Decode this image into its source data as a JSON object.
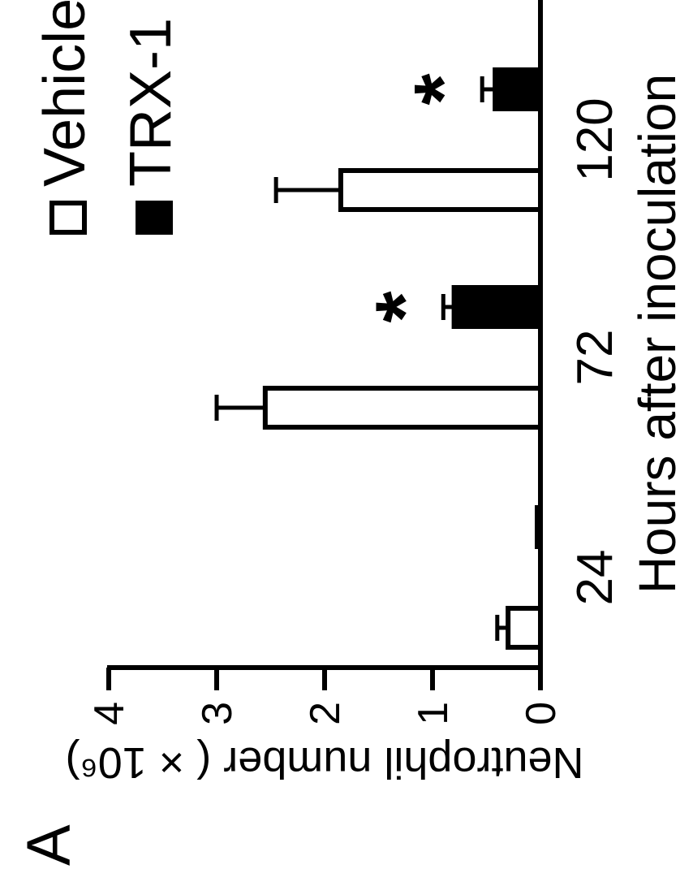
{
  "panel_label": "A",
  "chart_data": {
    "type": "bar",
    "orientation": "rotated-90-ccw",
    "xlabel": "Hours after inoculation",
    "ylabel": "Neutrophil number ( × 10⁶)",
    "categories": [
      "24",
      "72",
      "120"
    ],
    "ylim": [
      0,
      4
    ],
    "yticks": [
      "0",
      "1",
      "2",
      "3",
      "4"
    ],
    "series": [
      {
        "name": "Vehicle",
        "fill": "#ffffff",
        "values": [
          0.3,
          2.55,
          1.85
        ],
        "errors": [
          0.1,
          0.45,
          0.6
        ]
      },
      {
        "name": "TRX-1",
        "fill": "#000000",
        "values": [
          0.03,
          0.8,
          0.42
        ],
        "errors": [
          0.0,
          0.1,
          0.12
        ]
      }
    ],
    "annotations": [
      {
        "category": "72",
        "series": "TRX-1",
        "text": "*"
      },
      {
        "category": "120",
        "series": "TRX-1",
        "text": "*"
      }
    ],
    "legend_position": "top-right",
    "grid": false
  }
}
